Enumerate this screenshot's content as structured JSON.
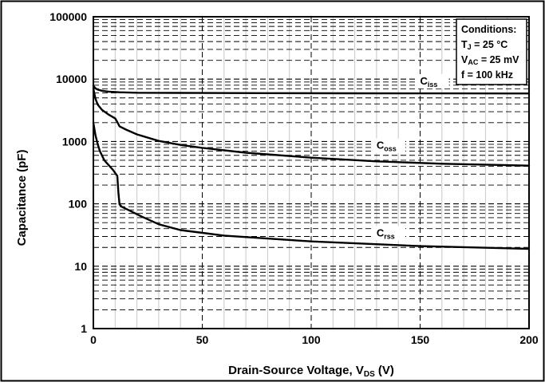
{
  "chart_data": {
    "type": "line",
    "xlabel": "Drain-Source Voltage, V",
    "xlabel_sub": "DS",
    "xlabel_unit": " (V)",
    "ylabel": "Capacitance (pF)",
    "x_scale": "linear",
    "y_scale": "log",
    "xlim": [
      0,
      200
    ],
    "ylim": [
      1,
      100000
    ],
    "x_ticks": [
      "0",
      "50",
      "100",
      "150",
      "200"
    ],
    "y_ticks": [
      "1",
      "10",
      "100",
      "1000",
      "10000",
      "100000"
    ],
    "grid": true,
    "series": [
      {
        "name": "C",
        "name_sub": "iss",
        "x": [
          0,
          1,
          2,
          4,
          7,
          12,
          20,
          40,
          80,
          120,
          160,
          200
        ],
        "y": [
          7800,
          7100,
          6800,
          6500,
          6300,
          6150,
          6050,
          6000,
          5950,
          5920,
          5900,
          5880
        ]
      },
      {
        "name": "C",
        "name_sub": "oss",
        "x": [
          0,
          1,
          2,
          4,
          7,
          10,
          11,
          12,
          15,
          20,
          30,
          40,
          50,
          70,
          100,
          130,
          160,
          200
        ],
        "y": [
          7000,
          4800,
          3900,
          3200,
          2700,
          2350,
          2050,
          1750,
          1550,
          1300,
          1020,
          880,
          790,
          660,
          550,
          480,
          440,
          410
        ]
      },
      {
        "name": "C",
        "name_sub": "rss",
        "x": [
          0,
          1,
          2,
          3,
          5,
          7,
          9,
          11,
          11.5,
          12,
          13,
          16,
          22,
          30,
          40,
          60,
          100,
          150,
          200
        ],
        "y": [
          2000,
          1250,
          900,
          700,
          500,
          420,
          350,
          280,
          150,
          98,
          90,
          80,
          63,
          47,
          38,
          31,
          25,
          21,
          19
        ]
      }
    ],
    "legend": {
      "title": "Conditions:",
      "lines": [
        {
          "main": "T",
          "sub": "J",
          "rest": " = 25 °C"
        },
        {
          "main": "V",
          "sub": "AC",
          "rest": " = 25 mV"
        },
        {
          "main": "f = 100 kHz",
          "sub": "",
          "rest": ""
        }
      ],
      "placement": "top-right"
    }
  }
}
